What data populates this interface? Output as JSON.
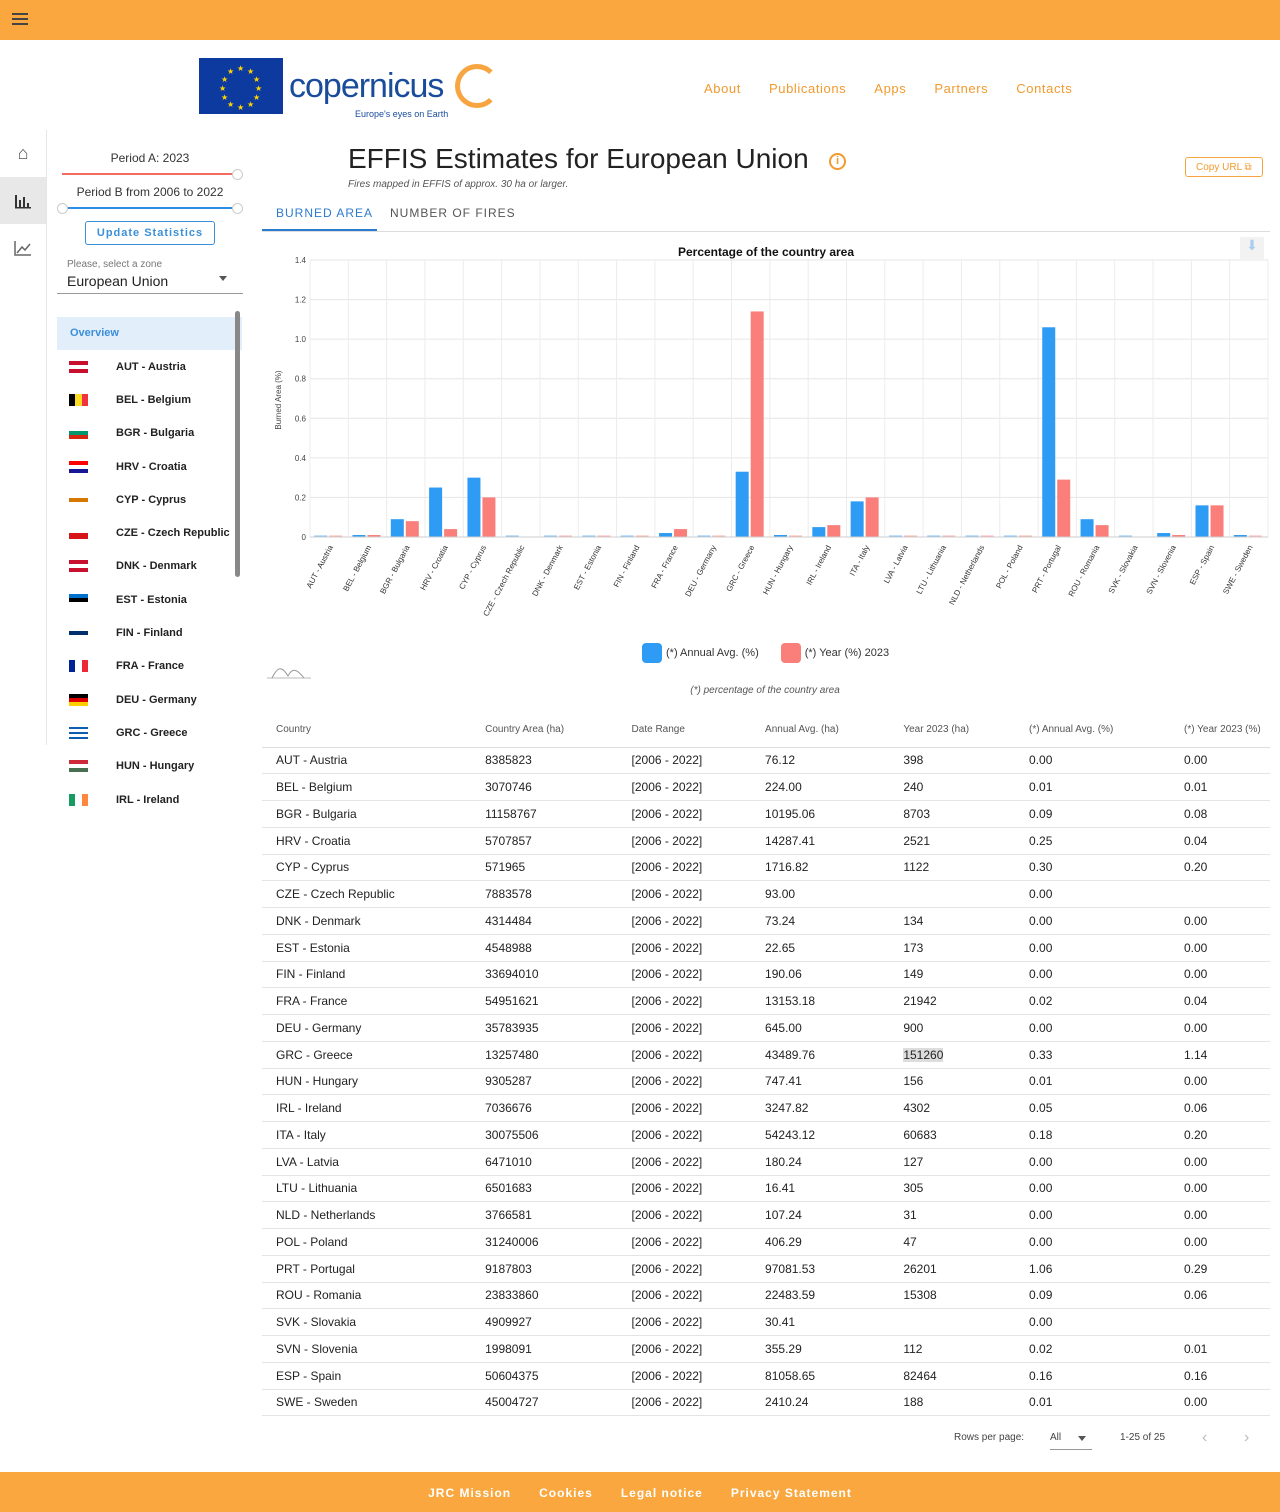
{
  "nav": {
    "items": [
      "About",
      "Publications",
      "Apps",
      "Partners",
      "Contacts"
    ]
  },
  "logo": {
    "text": "copernicus",
    "tagline": "Europe's eyes on Earth"
  },
  "sidebar": {
    "period_a": "Period A: 2023",
    "period_b": "Period B from 2006 to 2022",
    "update": "Update Statistics",
    "zone_label": "Please, select a zone",
    "zone_value": "European Union",
    "overview": "Overview",
    "items": [
      {
        "label": "AUT - Austria",
        "flag": [
          "#c8102e",
          "#fff",
          "#c8102e"
        ],
        "dir": "h"
      },
      {
        "label": "BEL - Belgium",
        "flag": [
          "#000",
          "#fdda24",
          "#ef3340"
        ],
        "dir": "v"
      },
      {
        "label": "BGR - Bulgaria",
        "flag": [
          "#fff",
          "#00966e",
          "#d62612"
        ],
        "dir": "h"
      },
      {
        "label": "HRV - Croatia",
        "flag": [
          "#ff0000",
          "#fff",
          "#171796"
        ],
        "dir": "h"
      },
      {
        "label": "CYP - Cyprus",
        "flag": [
          "#fff",
          "#d57800",
          "#fff"
        ],
        "dir": "h"
      },
      {
        "label": "CZE - Czech Republic",
        "flag": [
          "#fff",
          "#d7141a"
        ],
        "dir": "h"
      },
      {
        "label": "DNK - Denmark",
        "flag": [
          "#c8102e",
          "#fff",
          "#c8102e"
        ],
        "dir": "h"
      },
      {
        "label": "EST - Estonia",
        "flag": [
          "#0072ce",
          "#000",
          "#fff"
        ],
        "dir": "h"
      },
      {
        "label": "FIN - Finland",
        "flag": [
          "#fff",
          "#002f6c",
          "#fff"
        ],
        "dir": "h"
      },
      {
        "label": "FRA - France",
        "flag": [
          "#002395",
          "#fff",
          "#ed2939"
        ],
        "dir": "v"
      },
      {
        "label": "DEU - Germany",
        "flag": [
          "#000",
          "#dd0000",
          "#ffce00"
        ],
        "dir": "h"
      },
      {
        "label": "GRC - Greece",
        "flag": [
          "#0d5eaf",
          "#fff",
          "#0d5eaf",
          "#fff",
          "#0d5eaf"
        ],
        "dir": "h"
      },
      {
        "label": "HUN - Hungary",
        "flag": [
          "#ce2939",
          "#fff",
          "#477050"
        ],
        "dir": "h"
      },
      {
        "label": "IRL - Ireland",
        "flag": [
          "#169b62",
          "#fff",
          "#ff883e"
        ],
        "dir": "v"
      }
    ]
  },
  "header": {
    "title": "EFFIS Estimates for European Union",
    "subtitle": "Fires mapped in EFFIS of approx. 30 ha or larger.",
    "copy_url": "Copy URL",
    "tabs": [
      "BURNED AREA",
      "NUMBER OF FIRES"
    ]
  },
  "chart_data": {
    "type": "bar",
    "title": "Percentage of the country area",
    "ylabel": "Burned Area (%)",
    "ylim": [
      0,
      1.4
    ],
    "yticks": [
      "0",
      "0.2",
      "0.4",
      "0.6",
      "0.8",
      "1.0",
      "1.2",
      "1.4"
    ],
    "categories": [
      "AUT - Austria",
      "BEL - Belgium",
      "BGR - Bulgaria",
      "HRV - Croatia",
      "CYP - Cyprus",
      "CZE - Czech Republic",
      "DNK - Denmark",
      "EST - Estonia",
      "FIN - Finland",
      "FRA - France",
      "DEU - Germany",
      "GRC - Greece",
      "HUN - Hungary",
      "IRL - Ireland",
      "ITA - Italy",
      "LVA - Latvia",
      "LTU - Lithuania",
      "NLD - Netherlands",
      "POL - Poland",
      "PRT - Portugal",
      "ROU - Romania",
      "SVK - Slovakia",
      "SVN - Slovenia",
      "ESP - Spain",
      "SWE - Sweden"
    ],
    "series": [
      {
        "name": "(*) Annual Avg. (%)",
        "color": "#2E9BF5",
        "values": [
          0.0,
          0.01,
          0.09,
          0.25,
          0.3,
          0.0,
          0.0,
          0.0,
          0.0,
          0.02,
          0.0,
          0.33,
          0.01,
          0.05,
          0.18,
          0.0,
          0.0,
          0.0,
          0.0,
          1.06,
          0.09,
          0.0,
          0.02,
          0.16,
          0.01
        ]
      },
      {
        "name": "(*) Year (%) 2023",
        "color": "#FA7F7A",
        "values": [
          0.0,
          0.01,
          0.08,
          0.04,
          0.2,
          null,
          0.0,
          0.0,
          0.0,
          0.04,
          0.0,
          1.14,
          0.0,
          0.06,
          0.2,
          0.0,
          0.0,
          0.0,
          0.0,
          0.29,
          0.06,
          null,
          0.01,
          0.16,
          0.0
        ]
      }
    ],
    "legend": "bottom",
    "note": "(*) percentage of the country area"
  },
  "table": {
    "headers": [
      "Country",
      "Country Area (ha)",
      "Date Range",
      "Annual Avg. (ha)",
      "Year 2023 (ha)",
      "(*) Annual Avg. (%)",
      "(*) Year 2023 (%)"
    ],
    "rows": [
      [
        "AUT - Austria",
        "8385823",
        "[2006 - 2022]",
        "76.12",
        "398",
        "0.00",
        "0.00"
      ],
      [
        "BEL - Belgium",
        "3070746",
        "[2006 - 2022]",
        "224.00",
        "240",
        "0.01",
        "0.01"
      ],
      [
        "BGR - Bulgaria",
        "11158767",
        "[2006 - 2022]",
        "10195.06",
        "8703",
        "0.09",
        "0.08"
      ],
      [
        "HRV - Croatia",
        "5707857",
        "[2006 - 2022]",
        "14287.41",
        "2521",
        "0.25",
        "0.04"
      ],
      [
        "CYP - Cyprus",
        "571965",
        "[2006 - 2022]",
        "1716.82",
        "1122",
        "0.30",
        "0.20"
      ],
      [
        "CZE - Czech Republic",
        "7883578",
        "[2006 - 2022]",
        "93.00",
        "",
        "0.00",
        ""
      ],
      [
        "DNK - Denmark",
        "4314484",
        "[2006 - 2022]",
        "73.24",
        "134",
        "0.00",
        "0.00"
      ],
      [
        "EST - Estonia",
        "4548988",
        "[2006 - 2022]",
        "22.65",
        "173",
        "0.00",
        "0.00"
      ],
      [
        "FIN - Finland",
        "33694010",
        "[2006 - 2022]",
        "190.06",
        "149",
        "0.00",
        "0.00"
      ],
      [
        "FRA - France",
        "54951621",
        "[2006 - 2022]",
        "13153.18",
        "21942",
        "0.02",
        "0.04"
      ],
      [
        "DEU - Germany",
        "35783935",
        "[2006 - 2022]",
        "645.00",
        "900",
        "0.00",
        "0.00"
      ],
      [
        "GRC - Greece",
        "13257480",
        "[2006 - 2022]",
        "43489.76",
        "151260",
        "0.33",
        "1.14"
      ],
      [
        "HUN - Hungary",
        "9305287",
        "[2006 - 2022]",
        "747.41",
        "156",
        "0.01",
        "0.00"
      ],
      [
        "IRL - Ireland",
        "7036676",
        "[2006 - 2022]",
        "3247.82",
        "4302",
        "0.05",
        "0.06"
      ],
      [
        "ITA - Italy",
        "30075506",
        "[2006 - 2022]",
        "54243.12",
        "60683",
        "0.18",
        "0.20"
      ],
      [
        "LVA - Latvia",
        "6471010",
        "[2006 - 2022]",
        "180.24",
        "127",
        "0.00",
        "0.00"
      ],
      [
        "LTU - Lithuania",
        "6501683",
        "[2006 - 2022]",
        "16.41",
        "305",
        "0.00",
        "0.00"
      ],
      [
        "NLD - Netherlands",
        "3766581",
        "[2006 - 2022]",
        "107.24",
        "31",
        "0.00",
        "0.00"
      ],
      [
        "POL - Poland",
        "31240006",
        "[2006 - 2022]",
        "406.29",
        "47",
        "0.00",
        "0.00"
      ],
      [
        "PRT - Portugal",
        "9187803",
        "[2006 - 2022]",
        "97081.53",
        "26201",
        "1.06",
        "0.29"
      ],
      [
        "ROU - Romania",
        "23833860",
        "[2006 - 2022]",
        "22483.59",
        "15308",
        "0.09",
        "0.06"
      ],
      [
        "SVK - Slovakia",
        "4909927",
        "[2006 - 2022]",
        "30.41",
        "",
        "0.00",
        ""
      ],
      [
        "SVN - Slovenia",
        "1998091",
        "[2006 - 2022]",
        "355.29",
        "112",
        "0.02",
        "0.01"
      ],
      [
        "ESP - Spain",
        "50604375",
        "[2006 - 2022]",
        "81058.65",
        "82464",
        "0.16",
        "0.16"
      ],
      [
        "SWE - Sweden",
        "45004727",
        "[2006 - 2022]",
        "2410.24",
        "188",
        "0.01",
        "0.00"
      ]
    ],
    "rows_per_page_label": "Rows per page:",
    "rows_per_page": "All",
    "range": "1-25 of 25"
  },
  "footer": {
    "links": [
      "JRC Mission",
      "Cookies",
      "Legal notice",
      "Privacy Statement"
    ]
  }
}
